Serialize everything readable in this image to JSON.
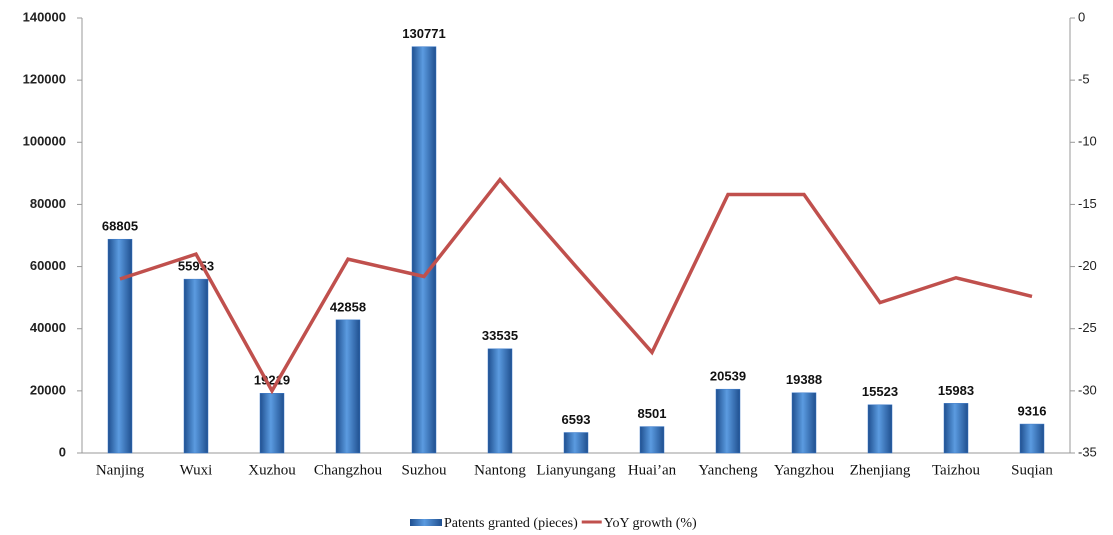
{
  "chart_data": {
    "type": "bar",
    "categories": [
      "Nanjing",
      "Wuxi",
      "Xuzhou",
      "Changzhou",
      "Suzhou",
      "Nantong",
      "Lianyungang",
      "Huai’an",
      "Yancheng",
      "Yangzhou",
      "Zhenjiang",
      "Taizhou",
      "Suqian"
    ],
    "series": [
      {
        "name": "Patents granted (pieces)",
        "type": "bar",
        "color": "#3a78c8",
        "values": [
          68805,
          55953,
          19219,
          42858,
          130771,
          33535,
          6593,
          8501,
          20539,
          19388,
          15523,
          15983,
          9316
        ]
      },
      {
        "name": "YoY growth (%)",
        "type": "line",
        "axis": "y2",
        "color": "#c0504d",
        "values": [
          -21,
          -19,
          -30,
          -19.4,
          -20.8,
          -13,
          -20,
          -26.9,
          -14.2,
          -14.2,
          -22.9,
          -20.9,
          -22.4
        ]
      }
    ],
    "ylim": [
      0,
      140000
    ],
    "yticks": [
      0,
      20000,
      40000,
      60000,
      80000,
      100000,
      120000,
      140000
    ],
    "y2lim": [
      -35,
      0
    ],
    "y2ticks": [
      0,
      -5,
      -10,
      -15,
      -20,
      -25,
      -30,
      -35
    ],
    "legend": "bottom"
  }
}
